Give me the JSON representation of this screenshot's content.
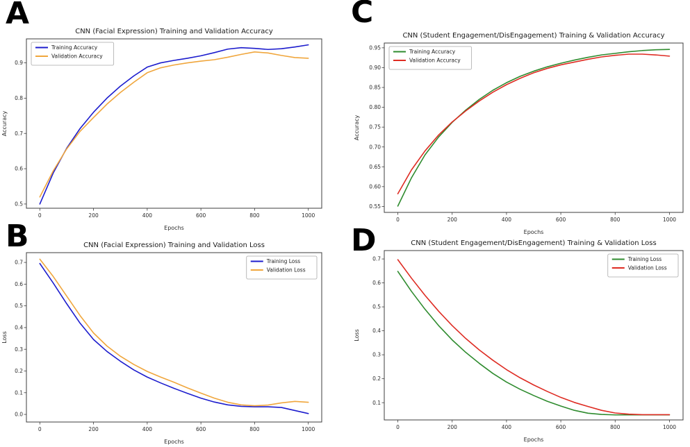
{
  "figure_background": "#ffffff",
  "chart_data": [
    {
      "panel_letter": "A",
      "type": "line",
      "title": "CNN (Facial Expression) Training and Validation Accuracy",
      "xlabel": "Epochs",
      "ylabel": "Accuracy",
      "xlim": [
        -50,
        1050
      ],
      "ylim": [
        0.488,
        0.968
      ],
      "xticks": [
        [
          0,
          "0"
        ],
        [
          200,
          "200"
        ],
        [
          400,
          "400"
        ],
        [
          600,
          "600"
        ],
        [
          800,
          "800"
        ],
        [
          1000,
          "1000"
        ]
      ],
      "yticks": [
        [
          0.5,
          "0.5"
        ],
        [
          0.6,
          "0.6"
        ],
        [
          0.7,
          "0.7"
        ],
        [
          0.8,
          "0.8"
        ],
        [
          0.9,
          "0.9"
        ]
      ],
      "grid": false,
      "legend_position": "upper-left",
      "x": [
        0,
        50,
        100,
        150,
        200,
        250,
        300,
        350,
        400,
        450,
        500,
        550,
        600,
        650,
        700,
        750,
        800,
        850,
        900,
        950,
        1000
      ],
      "series": [
        {
          "name": "Training Accuracy",
          "color": "#1c1ccd",
          "values": [
            0.5,
            0.588,
            0.658,
            0.714,
            0.76,
            0.8,
            0.834,
            0.863,
            0.888,
            0.9,
            0.907,
            0.913,
            0.92,
            0.929,
            0.939,
            0.943,
            0.941,
            0.938,
            0.94,
            0.945,
            0.951
          ]
        },
        {
          "name": "Validation Accuracy",
          "color": "#f0a63c",
          "values": [
            0.52,
            0.594,
            0.656,
            0.706,
            0.745,
            0.783,
            0.816,
            0.845,
            0.872,
            0.886,
            0.894,
            0.9,
            0.905,
            0.909,
            0.916,
            0.924,
            0.931,
            0.928,
            0.921,
            0.915,
            0.913
          ]
        }
      ]
    },
    {
      "panel_letter": "B",
      "type": "line",
      "title": "CNN (Facial Expression) Training and Validation Loss",
      "xlabel": "Epochs",
      "ylabel": "Loss",
      "xlim": [
        -50,
        1050
      ],
      "ylim": [
        -0.035,
        0.745
      ],
      "xticks": [
        [
          0,
          "0"
        ],
        [
          200,
          "200"
        ],
        [
          400,
          "400"
        ],
        [
          600,
          "600"
        ],
        [
          800,
          "800"
        ],
        [
          1000,
          "1000"
        ]
      ],
      "yticks": [
        [
          0.0,
          "0.0"
        ],
        [
          0.1,
          "0.1"
        ],
        [
          0.2,
          "0.2"
        ],
        [
          0.3,
          "0.3"
        ],
        [
          0.4,
          "0.4"
        ],
        [
          0.5,
          "0.5"
        ],
        [
          0.6,
          "0.6"
        ],
        [
          0.7,
          "0.7"
        ]
      ],
      "grid": false,
      "legend_position": "upper-right",
      "x": [
        0,
        50,
        100,
        150,
        200,
        250,
        300,
        350,
        400,
        450,
        500,
        550,
        600,
        650,
        700,
        750,
        800,
        850,
        900,
        950,
        1000
      ],
      "series": [
        {
          "name": "Training Loss",
          "color": "#1c1ccd",
          "values": [
            0.695,
            0.605,
            0.51,
            0.42,
            0.345,
            0.29,
            0.245,
            0.205,
            0.172,
            0.145,
            0.12,
            0.097,
            0.075,
            0.057,
            0.044,
            0.037,
            0.035,
            0.035,
            0.032,
            0.018,
            0.004
          ]
        },
        {
          "name": "Validation Loss",
          "color": "#f0a63c",
          "values": [
            0.715,
            0.635,
            0.545,
            0.455,
            0.375,
            0.315,
            0.268,
            0.23,
            0.198,
            0.172,
            0.148,
            0.122,
            0.098,
            0.075,
            0.056,
            0.044,
            0.04,
            0.043,
            0.053,
            0.06,
            0.056
          ]
        }
      ]
    },
    {
      "panel_letter": "C",
      "type": "line",
      "title": "CNN (Student Engagement/DisEngagement) Training & Validation Accuracy",
      "xlabel": "Epochs",
      "ylabel": "Accuracy",
      "xlim": [
        -50,
        1050
      ],
      "ylim": [
        0.535,
        0.962
      ],
      "xticks": [
        [
          0,
          "0"
        ],
        [
          200,
          "200"
        ],
        [
          400,
          "400"
        ],
        [
          600,
          "600"
        ],
        [
          800,
          "800"
        ],
        [
          1000,
          "1000"
        ]
      ],
      "yticks": [
        [
          0.55,
          "0.55"
        ],
        [
          0.6,
          "0.60"
        ],
        [
          0.65,
          "0.65"
        ],
        [
          0.7,
          "0.70"
        ],
        [
          0.75,
          "0.75"
        ],
        [
          0.8,
          "0.80"
        ],
        [
          0.85,
          "0.85"
        ],
        [
          0.9,
          "0.90"
        ],
        [
          0.95,
          "0.95"
        ]
      ],
      "grid": false,
      "legend_position": "upper-left",
      "x": [
        0,
        50,
        100,
        150,
        200,
        250,
        300,
        350,
        400,
        450,
        500,
        550,
        600,
        650,
        700,
        750,
        800,
        850,
        900,
        950,
        1000
      ],
      "series": [
        {
          "name": "Training Accuracy",
          "color": "#2e8b2e",
          "values": [
            0.551,
            0.622,
            0.68,
            0.725,
            0.762,
            0.793,
            0.82,
            0.843,
            0.862,
            0.878,
            0.891,
            0.902,
            0.911,
            0.919,
            0.926,
            0.932,
            0.936,
            0.94,
            0.943,
            0.945,
            0.946
          ]
        },
        {
          "name": "Validation Accuracy",
          "color": "#de2b22",
          "values": [
            0.582,
            0.642,
            0.69,
            0.73,
            0.763,
            0.791,
            0.816,
            0.838,
            0.857,
            0.873,
            0.887,
            0.898,
            0.907,
            0.914,
            0.921,
            0.927,
            0.931,
            0.934,
            0.934,
            0.932,
            0.929
          ]
        }
      ]
    },
    {
      "panel_letter": "D",
      "type": "line",
      "title": "CNN (Student Engagement/DisEngagement) Training & Validation Loss",
      "xlabel": "Epochs",
      "ylabel": "Loss",
      "xlim": [
        -50,
        1050
      ],
      "ylim": [
        0.028,
        0.735
      ],
      "xticks": [
        [
          0,
          "0"
        ],
        [
          200,
          "200"
        ],
        [
          400,
          "400"
        ],
        [
          600,
          "600"
        ],
        [
          800,
          "800"
        ],
        [
          1000,
          "1000"
        ]
      ],
      "yticks": [
        [
          0.1,
          "0.1"
        ],
        [
          0.2,
          "0.2"
        ],
        [
          0.3,
          "0.3"
        ],
        [
          0.4,
          "0.4"
        ],
        [
          0.5,
          "0.5"
        ],
        [
          0.6,
          "0.6"
        ],
        [
          0.7,
          "0.7"
        ]
      ],
      "grid": false,
      "legend_position": "upper-right",
      "x": [
        0,
        50,
        100,
        150,
        200,
        250,
        300,
        350,
        400,
        450,
        500,
        550,
        600,
        650,
        700,
        750,
        800,
        850,
        900,
        950,
        1000
      ],
      "series": [
        {
          "name": "Training Loss",
          "color": "#2e8b2e",
          "values": [
            0.648,
            0.565,
            0.49,
            0.422,
            0.362,
            0.31,
            0.264,
            0.222,
            0.186,
            0.156,
            0.13,
            0.106,
            0.086,
            0.068,
            0.056,
            0.051,
            0.049,
            0.049,
            0.049,
            0.049,
            0.049
          ]
        },
        {
          "name": "Validation Loss",
          "color": "#de2b22",
          "values": [
            0.697,
            0.62,
            0.548,
            0.482,
            0.422,
            0.368,
            0.32,
            0.277,
            0.238,
            0.204,
            0.174,
            0.147,
            0.122,
            0.101,
            0.084,
            0.068,
            0.057,
            0.052,
            0.05,
            0.05,
            0.05
          ]
        }
      ]
    }
  ]
}
